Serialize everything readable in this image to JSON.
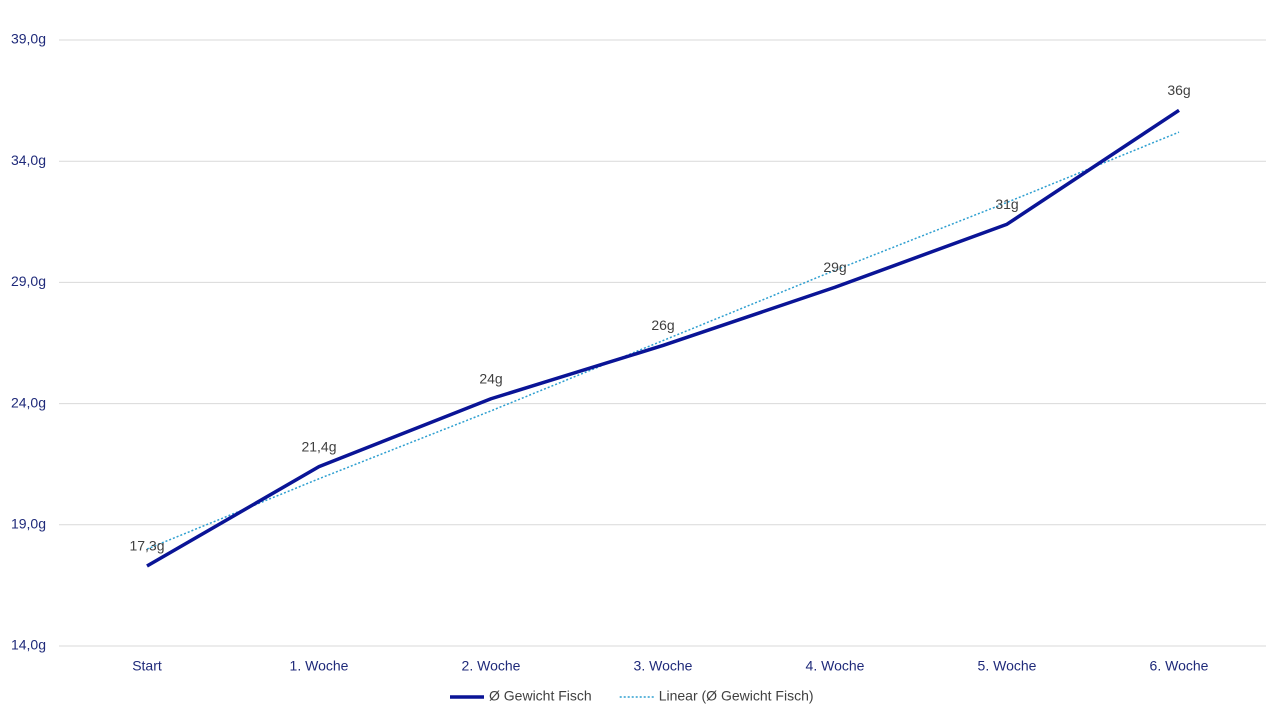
{
  "chart_data": {
    "type": "line",
    "categories": [
      "Start",
      "1. Woche",
      "2. Woche",
      "3. Woche",
      "4. Woche",
      "5. Woche",
      "6. Woche"
    ],
    "series": [
      {
        "name": "Ø Gewicht Fisch",
        "color": "#0a1496",
        "dash": "solid",
        "values": [
          17.3,
          21.4,
          24.2,
          26.4,
          28.8,
          31.4,
          36.1
        ],
        "value_labels": [
          "17,3g",
          "21,4g",
          "24g",
          "26g",
          "29g",
          "31g",
          "36g"
        ]
      },
      {
        "name": "Linear (Ø Gewicht Fisch)",
        "color": "#2e9fd0",
        "dash": "dotted",
        "values": [
          18.0,
          20.9,
          23.7,
          26.6,
          29.5,
          32.3,
          35.2
        ]
      }
    ],
    "ylim": [
      14,
      39
    ],
    "yticks": [
      {
        "value": 14,
        "label": "14,0g"
      },
      {
        "value": 19,
        "label": "19,0g"
      },
      {
        "value": 24,
        "label": "24,0g"
      },
      {
        "value": 29,
        "label": "29,0g"
      },
      {
        "value": 34,
        "label": "34,0g"
      },
      {
        "value": 39,
        "label": "39,0g"
      }
    ],
    "grid": true,
    "legend": "bottom"
  }
}
